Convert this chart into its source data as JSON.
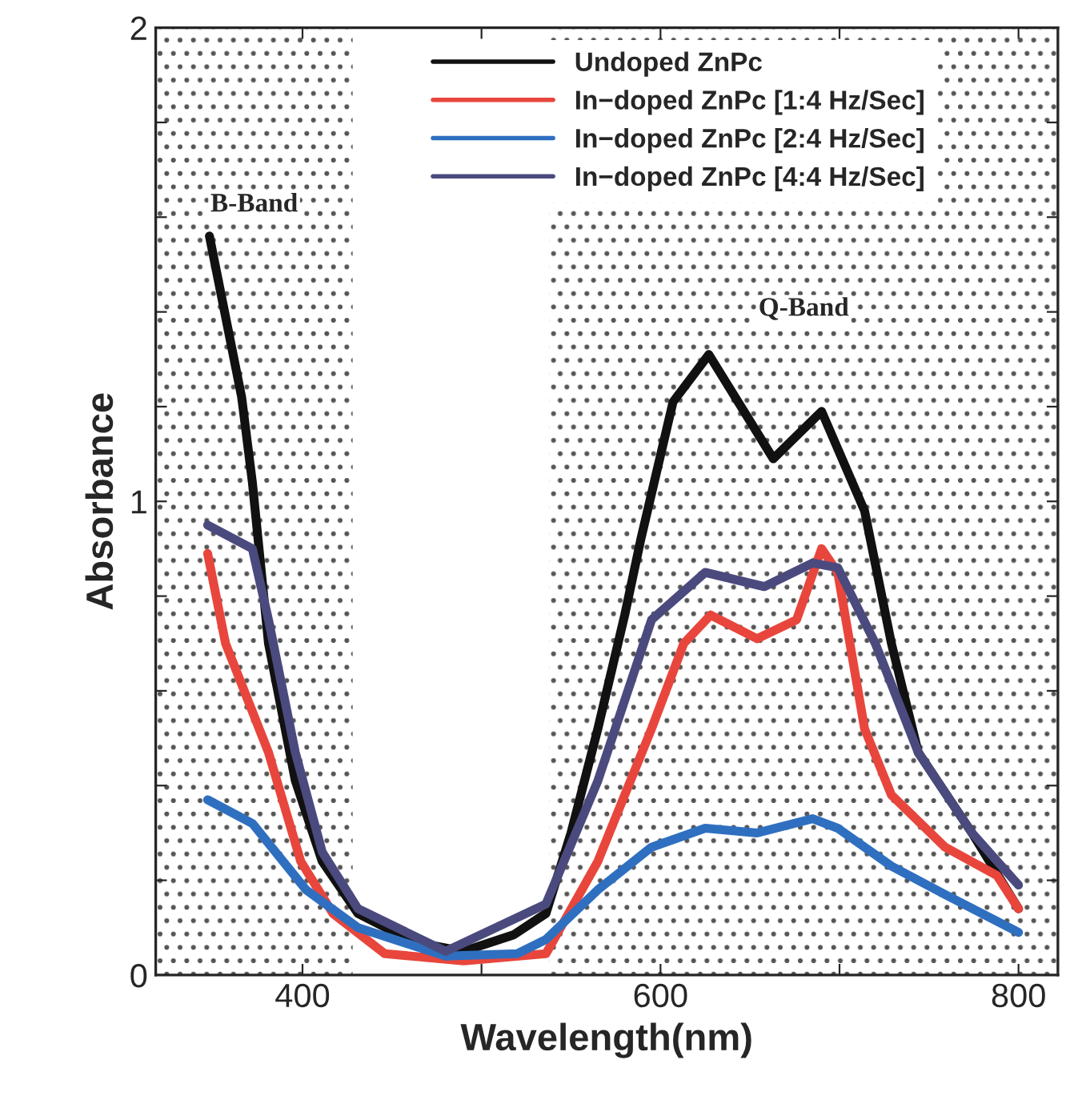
{
  "chart_data": {
    "type": "line",
    "xlabel": "Wavelength(nm)",
    "ylabel": "Absorbance",
    "xlim": [
      318,
      822
    ],
    "ylim": [
      0,
      2
    ],
    "xticks": [
      400,
      {
        "value": 500,
        "label": null
      },
      600,
      {
        "value": 700,
        "label": null
      },
      800
    ],
    "yticks": [
      0,
      {
        "value": 0.2,
        "label": null
      },
      {
        "value": 0.4,
        "label": null
      },
      {
        "value": 0.6,
        "label": null
      },
      {
        "value": 0.8,
        "label": null
      },
      1,
      {
        "value": 1.2,
        "label": null
      },
      {
        "value": 1.4,
        "label": null
      },
      {
        "value": 1.6,
        "label": null
      },
      {
        "value": 1.8,
        "label": null
      },
      2
    ],
    "grid": false,
    "legend": "top",
    "marker": "none",
    "line_style": "solid",
    "bands": [
      {
        "axis": "x",
        "from": 318,
        "to": 428,
        "label": "B-Band"
      },
      {
        "axis": "x",
        "from": 538,
        "to": 822,
        "label": "Q-Band"
      }
    ],
    "series": [
      {
        "name": "Undoped ZnPc",
        "color": "#111111",
        "x": [
          348,
          366,
          372,
          381,
          396,
          411,
          431,
          462,
          490,
          518,
          536,
          550,
          565,
          580,
          589,
          607,
          627,
          663,
          690,
          714,
          729,
          744,
          774,
          800
        ],
        "values": [
          1.56,
          1.22,
          1.04,
          0.7,
          0.41,
          0.24,
          0.13,
          0.07,
          0.05,
          0.085,
          0.13,
          0.3,
          0.52,
          0.76,
          0.92,
          1.21,
          1.31,
          1.09,
          1.19,
          0.98,
          0.7,
          0.47,
          0.3,
          0.14
        ]
      },
      {
        "name": "In−doped ZnPc [1:4 Hz/Sec]",
        "color": "#e8463c",
        "x": [
          347,
          357,
          381,
          399,
          417,
          446,
          490,
          536,
          565,
          595,
          613,
          628,
          654,
          676,
          690,
          699,
          714,
          729,
          759,
          788,
          800
        ],
        "values": [
          0.89,
          0.7,
          0.47,
          0.24,
          0.13,
          0.045,
          0.03,
          0.045,
          0.24,
          0.52,
          0.7,
          0.76,
          0.71,
          0.75,
          0.9,
          0.85,
          0.52,
          0.38,
          0.27,
          0.21,
          0.14
        ]
      },
      {
        "name": "In−doped ZnPc [2:4 Hz/Sec]",
        "color": "#2f6fc0",
        "x": [
          347,
          372,
          402,
          431,
          480,
          520,
          536,
          565,
          595,
          625,
          654,
          685,
          699,
          729,
          759,
          800
        ],
        "values": [
          0.37,
          0.32,
          0.18,
          0.1,
          0.04,
          0.045,
          0.075,
          0.18,
          0.27,
          0.31,
          0.3,
          0.33,
          0.31,
          0.23,
          0.17,
          0.09
        ]
      },
      {
        "name": "In−doped ZnPc [4:4 Hz/Sec]",
        "color": "#4b4a7e",
        "x": [
          347,
          372,
          381,
          396,
          411,
          431,
          480,
          536,
          565,
          595,
          625,
          658,
          685,
          699,
          720,
          744,
          774,
          800
        ],
        "values": [
          0.95,
          0.9,
          0.75,
          0.47,
          0.26,
          0.14,
          0.05,
          0.15,
          0.41,
          0.75,
          0.85,
          0.82,
          0.87,
          0.86,
          0.7,
          0.47,
          0.3,
          0.19
        ]
      }
    ]
  }
}
